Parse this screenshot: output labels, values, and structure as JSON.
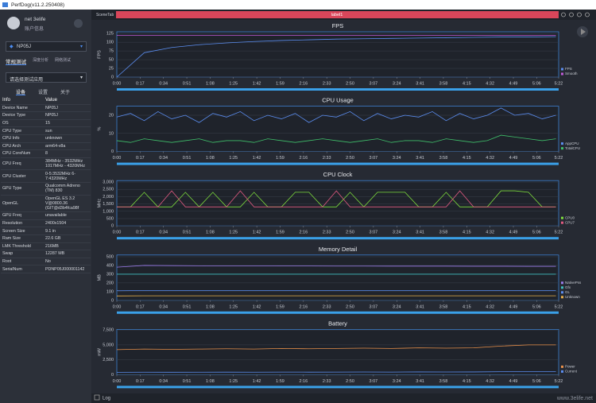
{
  "window_title": "PerfDog(v11.2.250408)",
  "user": {
    "name": "net 3elife",
    "account": "账户信息"
  },
  "device": "NP05J",
  "test_tabs": [
    "常规测试",
    "深度分析",
    "网络测试"
  ],
  "app_select": "请选择测试应用",
  "sub_tabs": [
    "设备",
    "设置",
    "关于"
  ],
  "info": {
    "header": [
      "Info",
      "Value"
    ],
    "rows": [
      [
        "Device Name",
        "NP05J"
      ],
      [
        "Device Type",
        "NP05J"
      ],
      [
        "OS",
        "15"
      ],
      [
        "CPU Type",
        "sun"
      ],
      [
        "CPU Info",
        "unknown"
      ],
      [
        "CPU Arch",
        "arm64-v8a"
      ],
      [
        "CPU CoreNum",
        "8"
      ],
      [
        "CPU Freq",
        "384MHz - 3532MHz 1017MHz - 4320MHz"
      ],
      [
        "CPU Cluster",
        "0-5:3532MHz 6-7:4320MHz"
      ],
      [
        "GPU Type",
        "Qualcomm Adreno (TM) 830"
      ],
      [
        "OpenGL",
        "OpenGL ES 3.2 V@0800.36 (GIT@d3b4fca98f"
      ],
      [
        "GPU Freq",
        "unavailable"
      ],
      [
        "Resolution",
        "2400x1504"
      ],
      [
        "Screen Size",
        "9.1 in"
      ],
      [
        "Ram Size",
        "22.6 GB"
      ],
      [
        "LMK Threshold",
        "216MB"
      ],
      [
        "Swap",
        "12287 MB"
      ],
      [
        "Root",
        "No"
      ],
      [
        "SerialNum",
        "PDNP05J000001142"
      ]
    ]
  },
  "scene_tab": "SceneTab",
  "label": "label1",
  "log": "Log",
  "watermark": "www.3elife.net",
  "chart_data": [
    {
      "type": "line",
      "title": "FPS",
      "y_label": "FPS",
      "xlim": [
        0,
        322
      ],
      "ylim": [
        0,
        130
      ],
      "yticks": [
        0,
        25,
        50,
        75,
        100,
        125
      ],
      "xticks": [
        {
          "value": 0,
          "label": "0:00"
        },
        {
          "value": 17,
          "label": "0:17"
        },
        {
          "value": 34,
          "label": "0:34"
        },
        {
          "value": 51,
          "label": "0:51"
        },
        {
          "value": 68,
          "label": "1:08"
        },
        {
          "value": 85,
          "label": "1:25"
        },
        {
          "value": 102,
          "label": "1:42"
        },
        {
          "value": 119,
          "label": "1:59"
        },
        {
          "value": 136,
          "label": "2:16"
        },
        {
          "value": 153,
          "label": "2:33"
        },
        {
          "value": 170,
          "label": "2:50"
        },
        {
          "value": 187,
          "label": "3:07"
        },
        {
          "value": 204,
          "label": "3:24"
        },
        {
          "value": 221,
          "label": "3:41"
        },
        {
          "value": 238,
          "label": "3:58"
        },
        {
          "value": 255,
          "label": "4:15"
        },
        {
          "value": 272,
          "label": "4:32"
        },
        {
          "value": 289,
          "label": "4:49"
        },
        {
          "value": 306,
          "label": "5:06"
        },
        {
          "value": 322,
          "label": "5:22"
        }
      ],
      "x": [
        0,
        20,
        40,
        60,
        80,
        100,
        120,
        140,
        160,
        180,
        200,
        220,
        240,
        260,
        280,
        300,
        320
      ],
      "series": [
        {
          "name": "FPS",
          "color": "#5b8def",
          "values": [
            0,
            70,
            85,
            93,
            98,
            102,
            105,
            107,
            109,
            110,
            111,
            112,
            113,
            114,
            115,
            115,
            116
          ]
        },
        {
          "name": "Smooth",
          "color": "#c05ad8",
          "values": [
            120,
            120,
            120,
            120,
            120,
            120,
            120,
            120,
            120,
            120,
            120,
            120,
            120,
            120,
            120,
            120,
            120
          ]
        }
      ]
    },
    {
      "type": "line",
      "title": "CPU Usage",
      "y_label": "%",
      "xlim": [
        0,
        322
      ],
      "ylim": [
        0,
        25
      ],
      "yticks": [
        0,
        10,
        20
      ],
      "xticks": [
        {
          "value": 0,
          "label": "0:00"
        },
        {
          "value": 17,
          "label": "0:17"
        },
        {
          "value": 34,
          "label": "0:34"
        },
        {
          "value": 51,
          "label": "0:51"
        },
        {
          "value": 68,
          "label": "1:08"
        },
        {
          "value": 85,
          "label": "1:25"
        },
        {
          "value": 102,
          "label": "1:42"
        },
        {
          "value": 119,
          "label": "1:59"
        },
        {
          "value": 136,
          "label": "2:16"
        },
        {
          "value": 153,
          "label": "2:33"
        },
        {
          "value": 170,
          "label": "2:50"
        },
        {
          "value": 187,
          "label": "3:07"
        },
        {
          "value": 204,
          "label": "3:24"
        },
        {
          "value": 221,
          "label": "3:41"
        },
        {
          "value": 238,
          "label": "3:58"
        },
        {
          "value": 255,
          "label": "4:15"
        },
        {
          "value": 272,
          "label": "4:32"
        },
        {
          "value": 289,
          "label": "4:49"
        },
        {
          "value": 306,
          "label": "5:06"
        },
        {
          "value": 322,
          "label": "5:22"
        }
      ],
      "x": [
        0,
        10,
        20,
        30,
        40,
        50,
        60,
        70,
        80,
        90,
        100,
        110,
        120,
        130,
        140,
        150,
        160,
        170,
        180,
        190,
        200,
        210,
        220,
        230,
        240,
        250,
        260,
        270,
        280,
        290,
        300,
        310,
        320
      ],
      "series": [
        {
          "name": "AppCPU",
          "color": "#5b8def",
          "values": [
            19,
            21,
            17,
            22,
            18,
            20,
            16,
            21,
            19,
            22,
            17,
            20,
            18,
            21,
            16,
            20,
            19,
            22,
            17,
            21,
            18,
            20,
            19,
            22,
            17,
            21,
            18,
            20,
            24,
            20,
            21,
            18,
            20
          ]
        },
        {
          "name": "TotalCPU",
          "color": "#3fbf6a",
          "values": [
            6,
            5,
            7,
            6,
            5,
            6,
            7,
            5,
            6,
            6,
            5,
            7,
            6,
            5,
            6,
            7,
            6,
            5,
            6,
            7,
            5,
            6,
            6,
            5,
            7,
            6,
            5,
            6,
            9,
            8,
            7,
            6,
            7
          ]
        }
      ]
    },
    {
      "type": "line",
      "title": "CPU Clock",
      "y_label": "MHz",
      "xlim": [
        0,
        322
      ],
      "ylim": [
        0,
        3100
      ],
      "yticks": [
        0,
        500,
        {
          "value": 1000,
          "label": "1,000"
        },
        {
          "value": 1500,
          "label": "1,500"
        },
        {
          "value": 2000,
          "label": "2,000"
        },
        {
          "value": 2500,
          "label": "2,500"
        },
        {
          "value": 3000,
          "label": "3,000"
        }
      ],
      "xticks": [
        {
          "value": 0,
          "label": "0:00"
        },
        {
          "value": 17,
          "label": "0:17"
        },
        {
          "value": 34,
          "label": "0:34"
        },
        {
          "value": 51,
          "label": "0:51"
        },
        {
          "value": 68,
          "label": "1:08"
        },
        {
          "value": 85,
          "label": "1:25"
        },
        {
          "value": 102,
          "label": "1:42"
        },
        {
          "value": 119,
          "label": "1:59"
        },
        {
          "value": 136,
          "label": "2:16"
        },
        {
          "value": 153,
          "label": "2:33"
        },
        {
          "value": 170,
          "label": "2:50"
        },
        {
          "value": 187,
          "label": "3:07"
        },
        {
          "value": 204,
          "label": "3:24"
        },
        {
          "value": 221,
          "label": "3:41"
        },
        {
          "value": 238,
          "label": "3:58"
        },
        {
          "value": 255,
          "label": "4:15"
        },
        {
          "value": 272,
          "label": "4:32"
        },
        {
          "value": 289,
          "label": "4:49"
        },
        {
          "value": 306,
          "label": "5:06"
        },
        {
          "value": 322,
          "label": "5:22"
        }
      ],
      "x": [
        0,
        10,
        20,
        30,
        40,
        50,
        60,
        70,
        80,
        90,
        100,
        110,
        120,
        130,
        140,
        150,
        160,
        170,
        180,
        190,
        200,
        210,
        220,
        230,
        240,
        250,
        260,
        270,
        280,
        290,
        300,
        310,
        320
      ],
      "series": [
        {
          "name": "CPU0",
          "color": "#7ddc3c",
          "values": [
            1300,
            1300,
            2300,
            1300,
            1300,
            2300,
            1300,
            2300,
            1300,
            1300,
            2300,
            1300,
            1300,
            2300,
            2300,
            1300,
            1300,
            2300,
            1300,
            2300,
            2300,
            2300,
            1300,
            1300,
            2300,
            1300,
            1300,
            1300,
            2400,
            2400,
            2300,
            1300,
            1300
          ]
        },
        {
          "name": "CPU7",
          "color": "#e05a80",
          "values": [
            1300,
            1300,
            1300,
            1300,
            2400,
            1300,
            1300,
            1300,
            1300,
            2400,
            1300,
            1300,
            1300,
            1300,
            1300,
            1300,
            2400,
            1300,
            1300,
            1300,
            1300,
            1300,
            1300,
            1300,
            1300,
            2400,
            1300,
            1300,
            1300,
            1300,
            1300,
            1300,
            1300
          ]
        }
      ]
    },
    {
      "type": "line",
      "title": "Memory Detail",
      "y_label": "MB",
      "xlim": [
        0,
        322
      ],
      "ylim": [
        0,
        520
      ],
      "yticks": [
        0,
        100,
        200,
        300,
        400,
        500
      ],
      "xticks": [
        {
          "value": 0,
          "label": "0:00"
        },
        {
          "value": 17,
          "label": "0:17"
        },
        {
          "value": 34,
          "label": "0:34"
        },
        {
          "value": 51,
          "label": "0:51"
        },
        {
          "value": 68,
          "label": "1:08"
        },
        {
          "value": 85,
          "label": "1:25"
        },
        {
          "value": 102,
          "label": "1:42"
        },
        {
          "value": 119,
          "label": "1:59"
        },
        {
          "value": 136,
          "label": "2:16"
        },
        {
          "value": 153,
          "label": "2:33"
        },
        {
          "value": 170,
          "label": "2:50"
        },
        {
          "value": 187,
          "label": "3:07"
        },
        {
          "value": 204,
          "label": "3:24"
        },
        {
          "value": 221,
          "label": "3:41"
        },
        {
          "value": 238,
          "label": "3:58"
        },
        {
          "value": 255,
          "label": "4:15"
        },
        {
          "value": 272,
          "label": "4:32"
        },
        {
          "value": 289,
          "label": "4:49"
        },
        {
          "value": 306,
          "label": "5:06"
        },
        {
          "value": 322,
          "label": "5:22"
        }
      ],
      "x": [
        0,
        20,
        40,
        60,
        80,
        100,
        120,
        140,
        160,
        180,
        200,
        220,
        240,
        260,
        280,
        300,
        320
      ],
      "series": [
        {
          "name": "NativePss",
          "color": "#9a7be8",
          "values": [
            380,
            400,
            398,
            396,
            395,
            395,
            394,
            394,
            393,
            393,
            392,
            392,
            392,
            391,
            391,
            390,
            390
          ]
        },
        {
          "name": "Gfx",
          "color": "#3fbfbf",
          "values": [
            300,
            300,
            300,
            300,
            300,
            300,
            300,
            300,
            300,
            300,
            300,
            300,
            300,
            300,
            300,
            300,
            300
          ]
        },
        {
          "name": "GL",
          "color": "#5b8def",
          "values": [
            110,
            112,
            112,
            112,
            112,
            112,
            112,
            112,
            112,
            112,
            112,
            112,
            112,
            112,
            112,
            112,
            112
          ]
        },
        {
          "name": "Unknown",
          "color": "#e8b04a",
          "values": [
            50,
            52,
            52,
            52,
            52,
            52,
            52,
            52,
            52,
            52,
            52,
            52,
            52,
            52,
            52,
            52,
            52
          ]
        }
      ]
    },
    {
      "type": "line",
      "title": "Battery",
      "y_label": "mW",
      "xlim": [
        0,
        322
      ],
      "ylim": [
        0,
        7600
      ],
      "yticks": [
        0,
        {
          "value": 2500,
          "label": "2,500"
        },
        {
          "value": 5000,
          "label": "5,000"
        },
        {
          "value": 7500,
          "label": "7,500"
        }
      ],
      "xticks": [
        {
          "value": 0,
          "label": "0:00"
        },
        {
          "value": 17,
          "label": "0:17"
        },
        {
          "value": 34,
          "label": "0:34"
        },
        {
          "value": 51,
          "label": "0:51"
        },
        {
          "value": 68,
          "label": "1:08"
        },
        {
          "value": 85,
          "label": "1:25"
        },
        {
          "value": 102,
          "label": "1:42"
        },
        {
          "value": 119,
          "label": "1:59"
        },
        {
          "value": 136,
          "label": "2:16"
        },
        {
          "value": 153,
          "label": "2:33"
        },
        {
          "value": 170,
          "label": "2:50"
        },
        {
          "value": 187,
          "label": "3:07"
        },
        {
          "value": 204,
          "label": "3:24"
        },
        {
          "value": 221,
          "label": "3:41"
        },
        {
          "value": 238,
          "label": "3:58"
        },
        {
          "value": 255,
          "label": "4:15"
        },
        {
          "value": 272,
          "label": "4:32"
        },
        {
          "value": 289,
          "label": "4:49"
        },
        {
          "value": 306,
          "label": "5:06"
        },
        {
          "value": 322,
          "label": "5:22"
        }
      ],
      "x": [
        0,
        20,
        40,
        60,
        80,
        100,
        120,
        140,
        160,
        180,
        200,
        220,
        240,
        260,
        280,
        300,
        320
      ],
      "series": [
        {
          "name": "Power",
          "color": "#e8904a",
          "values": [
            4200,
            4300,
            4250,
            4300,
            4350,
            4300,
            4400,
            4350,
            4400,
            4450,
            4400,
            4500,
            4450,
            4500,
            4800,
            5000,
            5000
          ]
        },
        {
          "name": "Current",
          "color": "#5b8def",
          "values": [
            400,
            420,
            410,
            420,
            430,
            420,
            440,
            430,
            440,
            450,
            440,
            460,
            450,
            460,
            500,
            520,
            520
          ]
        }
      ]
    }
  ]
}
